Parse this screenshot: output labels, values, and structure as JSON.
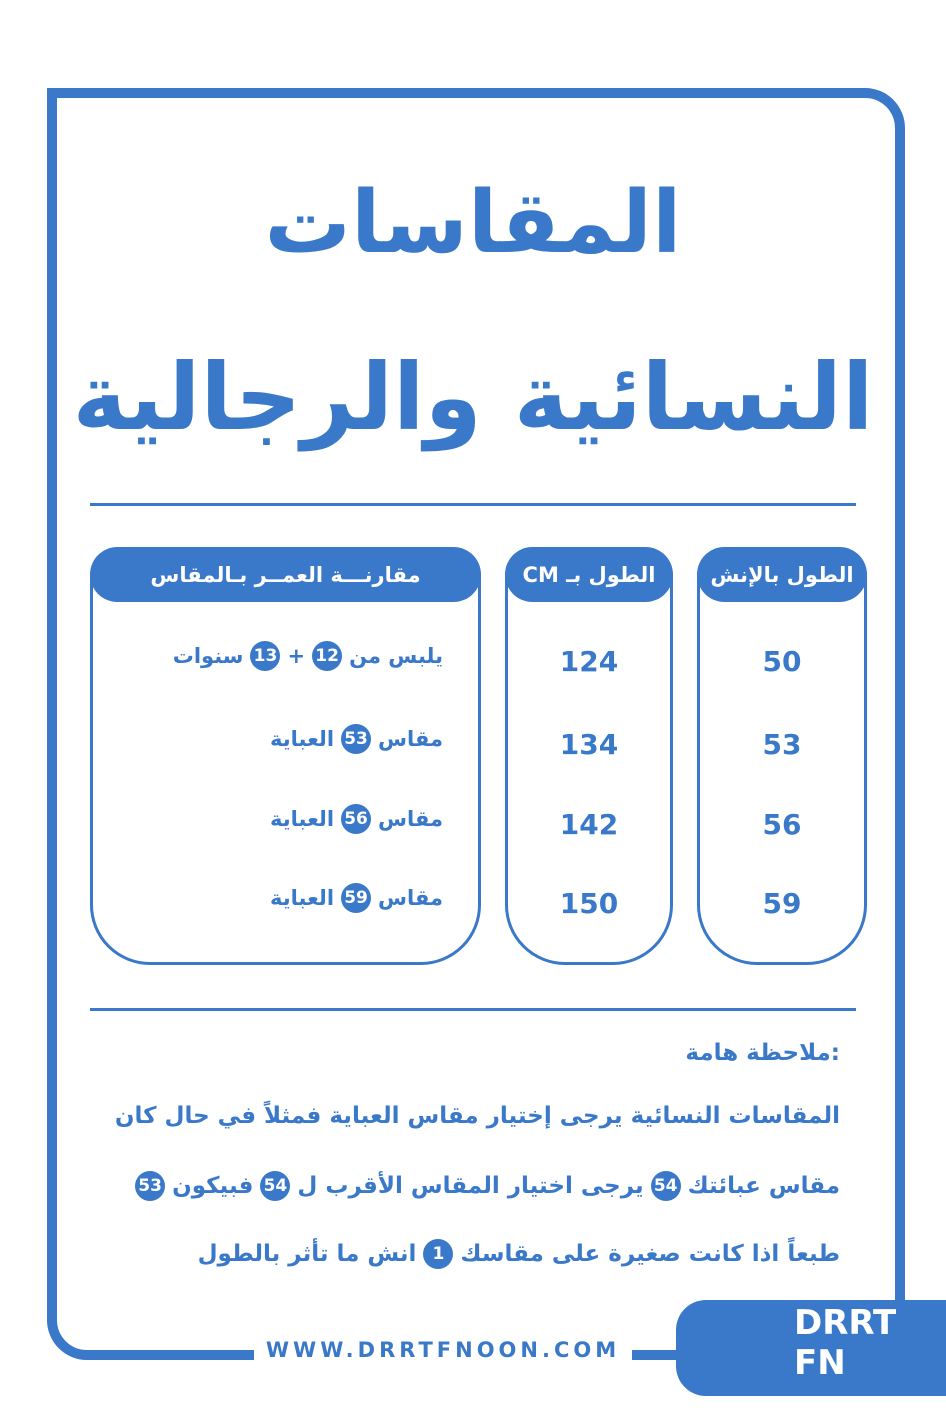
{
  "header": {
    "title_line1": "المقاسات",
    "title_line2": "النسائية والرجالية"
  },
  "table": {
    "columns": [
      "الطول بالإنش",
      "الطول بـ CM",
      "مقارنـــة العمــر بـالمقاس"
    ],
    "inch": [
      50,
      53,
      56,
      59
    ],
    "cm": [
      124,
      134,
      142,
      150
    ],
    "age": [
      [
        {
          "text": "يلبس من"
        },
        {
          "circled": 12
        },
        {
          "text": "+"
        },
        {
          "circled": 13
        },
        {
          "text": "سنوات"
        }
      ],
      [
        {
          "text": "مقاس"
        },
        {
          "circled": 53
        },
        {
          "text": "العباية"
        }
      ],
      [
        {
          "text": "مقاس"
        },
        {
          "circled": 56
        },
        {
          "text": "العباية"
        }
      ],
      [
        {
          "text": "مقاس"
        },
        {
          "circled": 59
        },
        {
          "text": "العباية"
        }
      ]
    ]
  },
  "note": {
    "heading": "ملاحظة هامة:",
    "lines": [
      [
        {
          "text": "المقاسات النسائية يرجى إختيار مقاس العباية فمثلاً في حال كان"
        }
      ],
      [
        {
          "text": "مقاس عبائتك"
        },
        {
          "circled": 54
        },
        {
          "text": "يرجى اختيار المقاس الأقرب ل"
        },
        {
          "circled": 54
        },
        {
          "text": "فبيكون"
        },
        {
          "circled": 53
        }
      ],
      [
        {
          "text": "طبعاً اذا كانت صغيرة على مقاسك"
        },
        {
          "circled": 1
        },
        {
          "text": "انش ما تأثر بالطول"
        }
      ]
    ]
  },
  "footer": {
    "url": "WWW.DRRTFNOON.COM",
    "logo": [
      "DRRT",
      "FN"
    ]
  }
}
